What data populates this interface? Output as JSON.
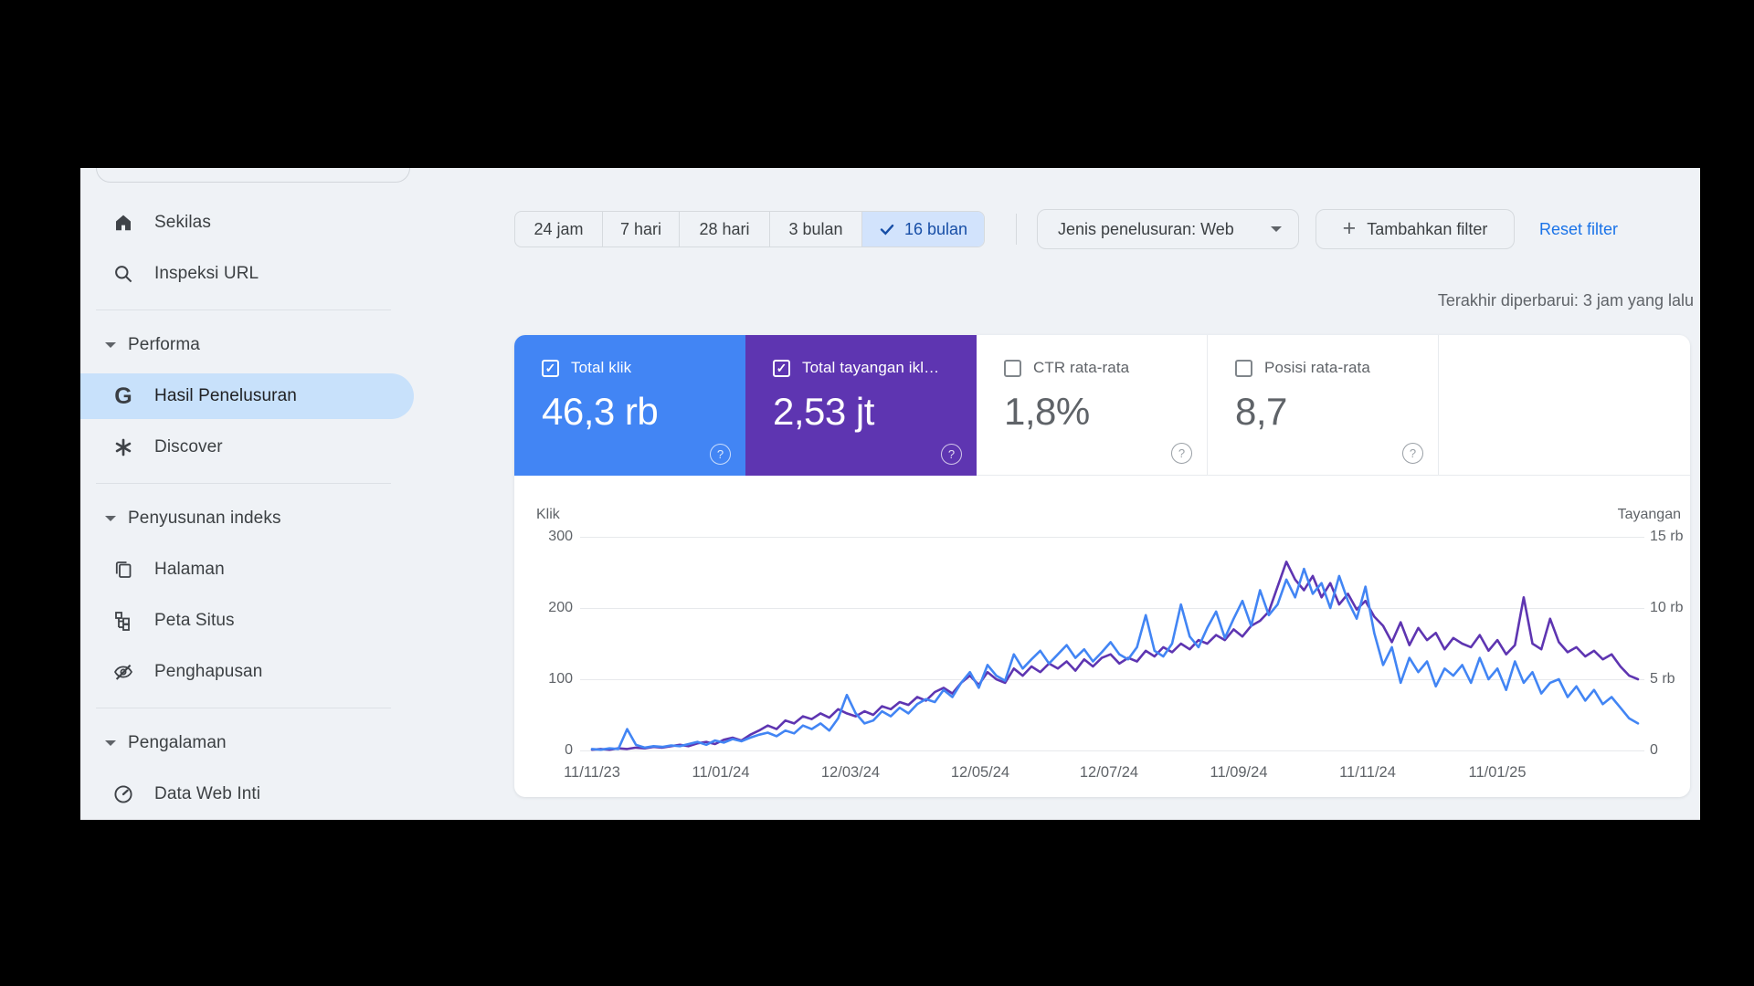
{
  "glyphs": {
    "google_g": "G",
    "plus": "+",
    "question": "?",
    "check": "✓"
  },
  "colors": {
    "accent_blue": "#4285f4",
    "accent_purple": "#5e35b1",
    "selected_chip_bg": "#d2e3fc",
    "selected_nav_bg": "#c8e1fb",
    "link_blue": "#1a73e8",
    "page_bg": "#eff2f6"
  },
  "sidebar": {
    "sections": [
      {
        "header": null,
        "items": [
          {
            "label": "Sekilas",
            "icon": "home-icon",
            "selected": false
          },
          {
            "label": "Inspeksi URL",
            "icon": "search-icon",
            "selected": false
          }
        ]
      },
      {
        "header": "Performa",
        "items": [
          {
            "label": "Hasil Penelusuran",
            "icon": "google-g-icon",
            "selected": true
          },
          {
            "label": "Discover",
            "icon": "asterisk-icon",
            "selected": false
          }
        ]
      },
      {
        "header": "Penyusunan indeks",
        "items": [
          {
            "label": "Halaman",
            "icon": "pages-icon",
            "selected": false
          },
          {
            "label": "Peta Situs",
            "icon": "sitemap-icon",
            "selected": false
          },
          {
            "label": "Penghapusan",
            "icon": "eye-off-icon",
            "selected": false
          }
        ]
      },
      {
        "header": "Pengalaman",
        "items": [
          {
            "label": "Data Web Inti",
            "icon": "gauge-icon",
            "selected": false
          }
        ]
      }
    ]
  },
  "filters": {
    "date_ranges": [
      "24 jam",
      "7 hari",
      "28 hari",
      "3 bulan",
      "16 bulan"
    ],
    "selected_range": "16 bulan",
    "search_type_label": "Jenis penelusuran: Web",
    "add_filter_label": "Tambahkan filter",
    "reset_label": "Reset filter"
  },
  "status": {
    "last_updated": "Terakhir diperbarui: 3 jam yang lalu"
  },
  "metrics": [
    {
      "label": "Total klik",
      "value": "46,3 rb",
      "checked": true,
      "bg": "#4285f4",
      "fg": "#ffffff"
    },
    {
      "label": "Total tayangan ikl…",
      "value": "2,53 jt",
      "checked": true,
      "bg": "#5e35b1",
      "fg": "#ffffff"
    },
    {
      "label": "CTR rata-rata",
      "value": "1,8%",
      "checked": false,
      "bg": "#ffffff",
      "fg": "#5f6368"
    },
    {
      "label": "Posisi rata-rata",
      "value": "8,7",
      "checked": false,
      "bg": "#ffffff",
      "fg": "#5f6368"
    }
  ],
  "chart_data": {
    "type": "line",
    "grid": true,
    "legend": "none",
    "x_axis_labels": [
      "11/11/23",
      "11/01/24",
      "12/03/24",
      "12/05/24",
      "12/07/24",
      "11/09/24",
      "11/11/24",
      "11/01/25"
    ],
    "left_axis": {
      "title": "Klik",
      "ticks": [
        "300",
        "200",
        "100",
        "0"
      ],
      "range": [
        0,
        300
      ]
    },
    "right_axis": {
      "title": "Tayangan",
      "ticks": [
        "15 rb",
        "10 rb",
        "5 rb",
        "0"
      ],
      "range": [
        0,
        15000
      ]
    },
    "series": [
      {
        "name": "Total tayangan",
        "axis": "right",
        "color": "#5e35b1",
        "values": [
          50,
          100,
          50,
          150,
          100,
          200,
          150,
          250,
          200,
          300,
          400,
          300,
          500,
          600,
          450,
          750,
          900,
          700,
          1100,
          1400,
          1750,
          1500,
          2100,
          1900,
          2400,
          2200,
          2600,
          2300,
          2900,
          2600,
          2400,
          2750,
          2500,
          3100,
          2900,
          3400,
          3200,
          3750,
          3500,
          4100,
          4400,
          4000,
          4750,
          5250,
          4600,
          5500,
          5000,
          4750,
          5750,
          5250,
          5900,
          5500,
          6100,
          5750,
          6250,
          5600,
          6400,
          5900,
          6500,
          6750,
          6100,
          6500,
          6250,
          7000,
          6600,
          7250,
          6900,
          7500,
          7100,
          7750,
          7500,
          8100,
          7750,
          8500,
          8000,
          8750,
          9100,
          9750,
          11500,
          13250,
          12000,
          11250,
          12250,
          10750,
          11750,
          10250,
          11000,
          9900,
          10500,
          9400,
          8750,
          7600,
          9000,
          7400,
          8600,
          7750,
          8250,
          7100,
          7900,
          7500,
          7250,
          8100,
          7000,
          7750,
          6750,
          7400,
          10750,
          7500,
          7100,
          9250,
          7600,
          6900,
          7250,
          6600,
          7000,
          6400,
          6750,
          5900,
          5250,
          5000
        ]
      },
      {
        "name": "Total klik",
        "axis": "left",
        "color": "#4285f4",
        "values": [
          2,
          1,
          3,
          2,
          30,
          8,
          4,
          6,
          5,
          7,
          6,
          9,
          12,
          8,
          14,
          11,
          16,
          13,
          18,
          22,
          25,
          20,
          28,
          24,
          35,
          30,
          38,
          28,
          45,
          78,
          52,
          38,
          42,
          55,
          48,
          60,
          52,
          65,
          72,
          68,
          85,
          75,
          95,
          110,
          88,
          120,
          105,
          98,
          135,
          115,
          128,
          140,
          122,
          135,
          148,
          130,
          142,
          125,
          138,
          152,
          135,
          128,
          145,
          190,
          140,
          132,
          150,
          205,
          160,
          145,
          172,
          195,
          158,
          185,
          210,
          175,
          225,
          190,
          205,
          240,
          215,
          255,
          220,
          235,
          200,
          245,
          210,
          185,
          230,
          165,
          120,
          145,
          95,
          130,
          110,
          125,
          90,
          115,
          105,
          120,
          95,
          130,
          100,
          115,
          85,
          125,
          95,
          110,
          80,
          95,
          100,
          75,
          90,
          70,
          85,
          65,
          75,
          60,
          45,
          38
        ]
      }
    ]
  }
}
